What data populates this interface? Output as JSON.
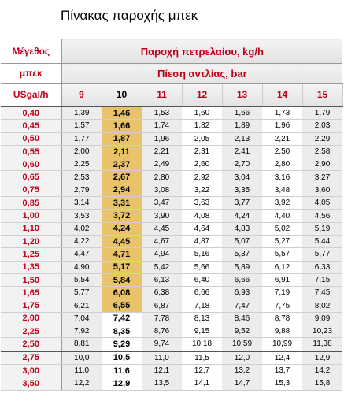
{
  "title": "Πίνακας παροχής μπεκ",
  "table": {
    "size_header": [
      "Μέγεθος",
      "μπεκ",
      "USgal/h"
    ],
    "flow_header": "Παροχή πετρελαίου, kg/h",
    "pressure_header": "Πίεση αντλίας, bar",
    "pressures": [
      "9",
      "10",
      "11",
      "12",
      "13",
      "14",
      "15"
    ],
    "rows": [
      {
        "size": "0,40",
        "values": [
          "1,39",
          "1,46",
          "1,53",
          "1,60",
          "1,66",
          "1,73",
          "1,79"
        ]
      },
      {
        "size": "0,45",
        "values": [
          "1,57",
          "1,66",
          "1,74",
          "1,82",
          "1,89",
          "1,96",
          "2,03"
        ]
      },
      {
        "size": "0,50",
        "values": [
          "1,77",
          "1,87",
          "1,96",
          "2,05",
          "2,13",
          "2,21",
          "2,29"
        ]
      },
      {
        "size": "0,55",
        "values": [
          "2,00",
          "2,11",
          "2,21",
          "2,31",
          "2,41",
          "2,50",
          "2,58"
        ]
      },
      {
        "size": "0,60",
        "values": [
          "2,25",
          "2,37",
          "2,49",
          "2,60",
          "2,70",
          "2,80",
          "2,90"
        ]
      },
      {
        "size": "0,65",
        "values": [
          "2,53",
          "2,67",
          "2,80",
          "2,92",
          "3,04",
          "3,16",
          "3,27"
        ]
      },
      {
        "size": "0,75",
        "values": [
          "2,79",
          "2,94",
          "3,08",
          "3,22",
          "3,35",
          "3,48",
          "3,60"
        ]
      },
      {
        "size": "0,85",
        "values": [
          "3,14",
          "3,31",
          "3,47",
          "3,63",
          "3,77",
          "3,92",
          "4,05"
        ]
      },
      {
        "size": "1,00",
        "values": [
          "3,53",
          "3,72",
          "3,90",
          "4,08",
          "4,24",
          "4,40",
          "4,56"
        ]
      },
      {
        "size": "1,10",
        "values": [
          "4,02",
          "4,24",
          "4,45",
          "4,64",
          "4,83",
          "5,02",
          "5,19"
        ]
      },
      {
        "size": "1,20",
        "values": [
          "4,22",
          "4,45",
          "4,67",
          "4,87",
          "5,07",
          "5,27",
          "5,44"
        ]
      },
      {
        "size": "1,25",
        "values": [
          "4,47",
          "4,71",
          "4,94",
          "5,16",
          "5,37",
          "5,57",
          "5,77"
        ]
      },
      {
        "size": "1,35",
        "values": [
          "4,90",
          "5,17",
          "5,42",
          "5,66",
          "5,89",
          "6,12",
          "6,33"
        ]
      },
      {
        "size": "1,50",
        "values": [
          "5,54",
          "5,84",
          "6,13",
          "6,40",
          "6,66",
          "6,91",
          "7,15"
        ]
      },
      {
        "size": "1,65",
        "values": [
          "5,77",
          "6,08",
          "6,38",
          "6,66",
          "6,93",
          "7,19",
          "7,45"
        ]
      },
      {
        "size": "1,75",
        "values": [
          "6,21",
          "6,55",
          "6,87",
          "7,18",
          "7,47",
          "7,75",
          "8,02"
        ]
      },
      {
        "size": "2,00",
        "values": [
          "7,04",
          "7,42",
          "7,78",
          "8,13",
          "8,46",
          "8,78",
          "9,09"
        ]
      },
      {
        "size": "2,25",
        "values": [
          "7,92",
          "8,35",
          "8,76",
          "9,15",
          "9,52",
          "9,88",
          "10,23"
        ]
      },
      {
        "size": "2,50",
        "values": [
          "8,81",
          "9,29",
          "9,74",
          "10,18",
          "10,59",
          "10,99",
          "11,38"
        ]
      },
      {
        "size": "2,75",
        "values": [
          "10,0",
          "10,5",
          "11,0",
          "11,5",
          "12,0",
          "12,4",
          "12,9"
        ]
      },
      {
        "size": "3,00",
        "values": [
          "11,0",
          "11,6",
          "12,1",
          "12,7",
          "13,2",
          "13,7",
          "14,2"
        ]
      },
      {
        "size": "3,50",
        "values": [
          "12,2",
          "12,9",
          "13,5",
          "14,1",
          "14,7",
          "15,3",
          "15,8"
        ]
      }
    ]
  },
  "colors": {
    "header_red": "#c0001a",
    "highlight": "#e8c36a",
    "shade": "#ececec"
  }
}
